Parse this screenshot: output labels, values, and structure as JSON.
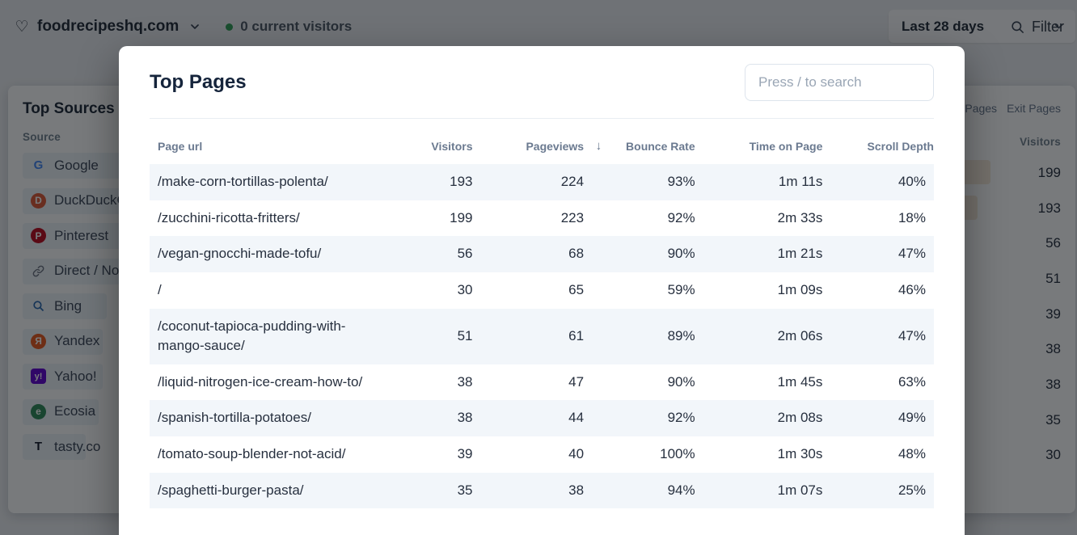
{
  "topbar": {
    "favicon_glyph": "♡",
    "site_name": "foodrecipeshq.com",
    "current_visitors": "0 current visitors",
    "status_dot_color": "#2f9e55",
    "filter_label": "Filter",
    "date_range_label": "Last 28 days"
  },
  "sources_panel": {
    "title": "Top Sources",
    "column_header": "Source",
    "bar_color": "#eef3f8",
    "items": [
      {
        "label": "Google",
        "icon": "google-favicon",
        "glyph": "G",
        "fg": "#4285F4",
        "bg": "transparent",
        "bar_pct": 100
      },
      {
        "label": "DuckDuckGo",
        "icon": "duckduckgo-favicon",
        "glyph": "D",
        "fg": "#ffffff",
        "bg": "#de5833",
        "bar_pct": 97
      },
      {
        "label": "Pinterest",
        "icon": "pinterest-favicon",
        "glyph": "P",
        "fg": "#ffffff",
        "bg": "#bd081c",
        "bar_pct": 28
      },
      {
        "label": "Direct / None",
        "icon": "link-icon",
        "glyph": "",
        "fg": "#6b7280",
        "bg": "transparent",
        "bar_pct": 26
      },
      {
        "label": "Bing",
        "icon": "bing-favicon",
        "glyph": "",
        "fg": "#2565ae",
        "bg": "transparent",
        "bar_pct": 20
      },
      {
        "label": "Yandex",
        "icon": "yandex-favicon",
        "glyph": "Я",
        "fg": "#ffffff",
        "bg": "#e8581c",
        "bar_pct": 19
      },
      {
        "label": "Yahoo!",
        "icon": "yahoo-favicon",
        "glyph": "y!",
        "fg": "#ffffff",
        "bg": "#5f01d1",
        "bar_pct": 19
      },
      {
        "label": "Ecosia",
        "icon": "ecosia-favicon",
        "glyph": "e",
        "fg": "#ffffff",
        "bg": "#2e8b57",
        "bar_pct": 18
      },
      {
        "label": "tasty.co",
        "icon": "tasty-favicon",
        "glyph": "T",
        "fg": "#111827",
        "bg": "transparent",
        "bar_pct": 15
      }
    ]
  },
  "pages_panel": {
    "tabs": [
      "Pages",
      "Exit Pages"
    ],
    "column_header": "Visitors",
    "bar_color": "#f7e9d9",
    "max_value": 199,
    "values": [
      199,
      193,
      56,
      51,
      39,
      38,
      38,
      35,
      30
    ]
  },
  "modal": {
    "title": "Top Pages",
    "search_placeholder": "Press / to search",
    "table": {
      "headers": {
        "page": "Page url",
        "visitors": "Visitors",
        "pageviews": "Pageviews",
        "bounce": "Bounce Rate",
        "time": "Time on Page",
        "scroll": "Scroll Depth"
      },
      "sorted_by": "Pageviews",
      "sort_direction": "desc",
      "sort_icon": "↓",
      "rows": [
        {
          "page": "/make-corn-tortillas-polenta/",
          "visitors": "193",
          "pageviews": "224",
          "bounce": "93%",
          "time": "1m 11s",
          "scroll": "40%"
        },
        {
          "page": "/zucchini-ricotta-fritters/",
          "visitors": "199",
          "pageviews": "223",
          "bounce": "92%",
          "time": "2m 33s",
          "scroll": "18%"
        },
        {
          "page": "/vegan-gnocchi-made-tofu/",
          "visitors": "56",
          "pageviews": "68",
          "bounce": "90%",
          "time": "1m 21s",
          "scroll": "47%"
        },
        {
          "page": "/",
          "visitors": "30",
          "pageviews": "65",
          "bounce": "59%",
          "time": "1m 09s",
          "scroll": "46%"
        },
        {
          "page": "/coconut-tapioca-pudding-with-mango-sauce/",
          "visitors": "51",
          "pageviews": "61",
          "bounce": "89%",
          "time": "2m 06s",
          "scroll": "47%"
        },
        {
          "page": "/liquid-nitrogen-ice-cream-how-to/",
          "visitors": "38",
          "pageviews": "47",
          "bounce": "90%",
          "time": "1m 45s",
          "scroll": "63%"
        },
        {
          "page": "/spanish-tortilla-potatoes/",
          "visitors": "38",
          "pageviews": "44",
          "bounce": "92%",
          "time": "2m 08s",
          "scroll": "49%"
        },
        {
          "page": "/tomato-soup-blender-not-acid/",
          "visitors": "39",
          "pageviews": "40",
          "bounce": "100%",
          "time": "1m 30s",
          "scroll": "48%"
        },
        {
          "page": "/spaghetti-burger-pasta/",
          "visitors": "35",
          "pageviews": "38",
          "bounce": "94%",
          "time": "1m 07s",
          "scroll": "25%"
        }
      ]
    }
  }
}
